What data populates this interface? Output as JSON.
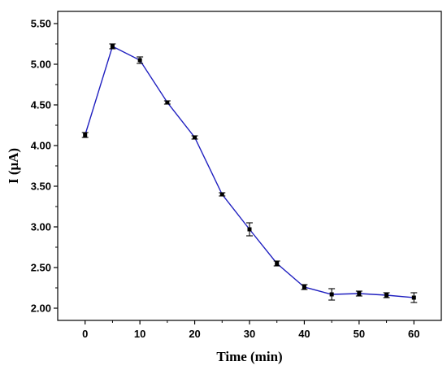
{
  "chart_data": {
    "type": "line",
    "title": "",
    "xlabel": "Time (min)",
    "ylabel": "I (μA)",
    "xlim": [
      -5,
      65
    ],
    "ylim": [
      1.85,
      5.65
    ],
    "x_ticks": [
      "0",
      "10",
      "20",
      "30",
      "40",
      "50",
      "60"
    ],
    "y_ticks": [
      "2.00",
      "2.50",
      "3.00",
      "3.50",
      "4.00",
      "4.50",
      "5.00",
      "5.50"
    ],
    "grid": false,
    "legend": "none",
    "line_color": "#2020c0",
    "marker_color": "#000000",
    "series": [
      {
        "x": [
          0,
          5,
          10,
          15,
          20,
          25,
          30,
          35,
          40,
          45,
          50,
          55,
          60
        ],
        "y": [
          4.13,
          5.22,
          5.05,
          4.53,
          4.1,
          3.4,
          2.97,
          2.55,
          2.26,
          2.17,
          2.18,
          2.16,
          2.13
        ],
        "error": [
          0.03,
          0.03,
          0.04,
          0.02,
          0.02,
          0.02,
          0.08,
          0.03,
          0.03,
          0.07,
          0.03,
          0.03,
          0.06
        ]
      }
    ]
  }
}
